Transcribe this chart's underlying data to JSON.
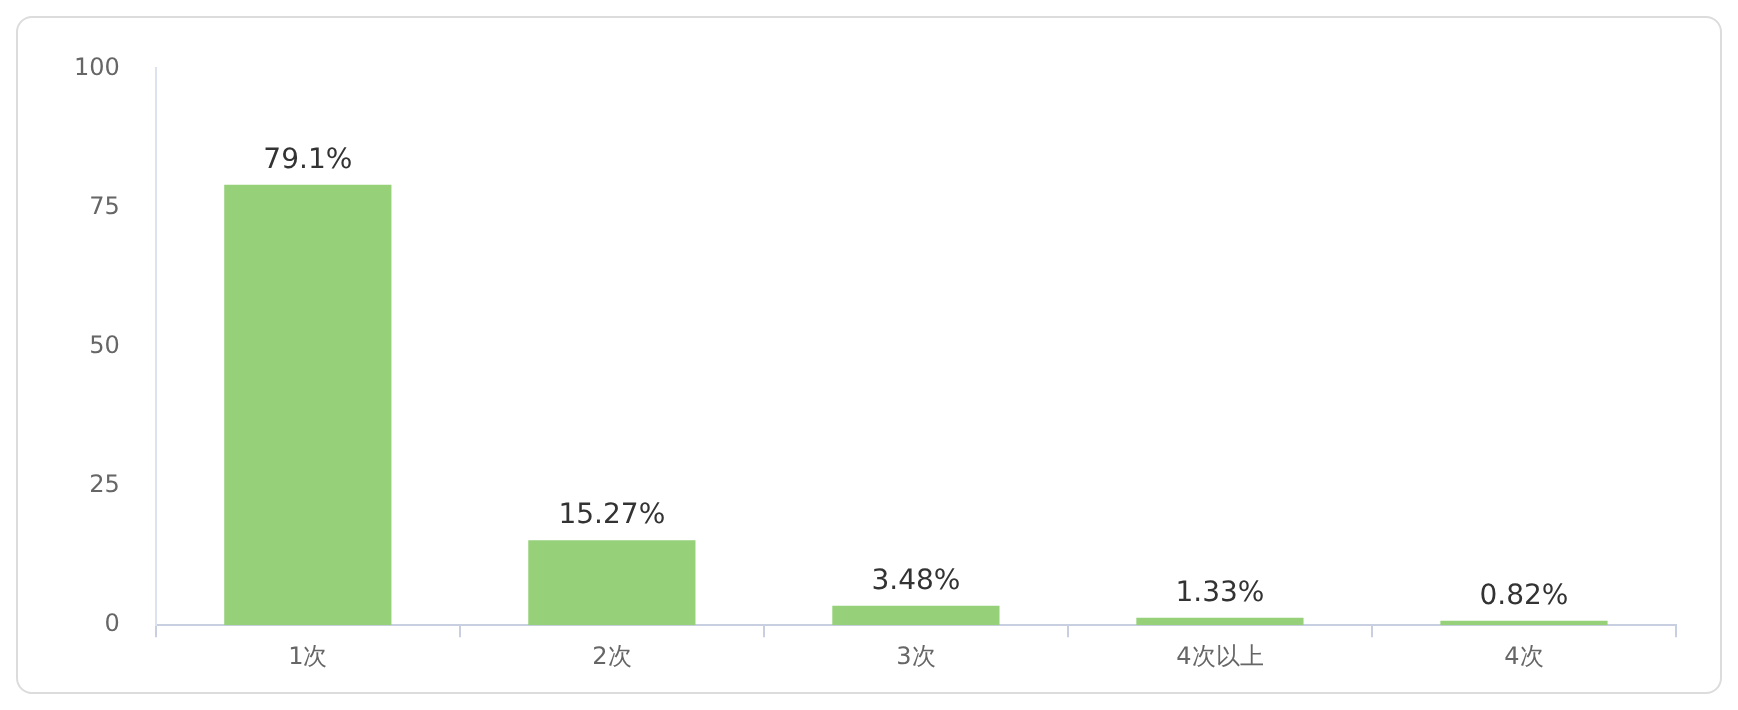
{
  "chart_data": {
    "type": "bar",
    "categories": [
      "1次",
      "2次",
      "3次",
      "4次以上",
      "4次"
    ],
    "values": [
      79.1,
      15.27,
      3.48,
      1.33,
      0.82
    ],
    "value_labels": [
      "79.1%",
      "15.27%",
      "3.48%",
      "1.33%",
      "0.82%"
    ],
    "color": "#96d17a",
    "ylim": [
      0,
      100
    ],
    "yticks": [
      0,
      25,
      50,
      75,
      100
    ],
    "grid": false,
    "legend": false
  }
}
